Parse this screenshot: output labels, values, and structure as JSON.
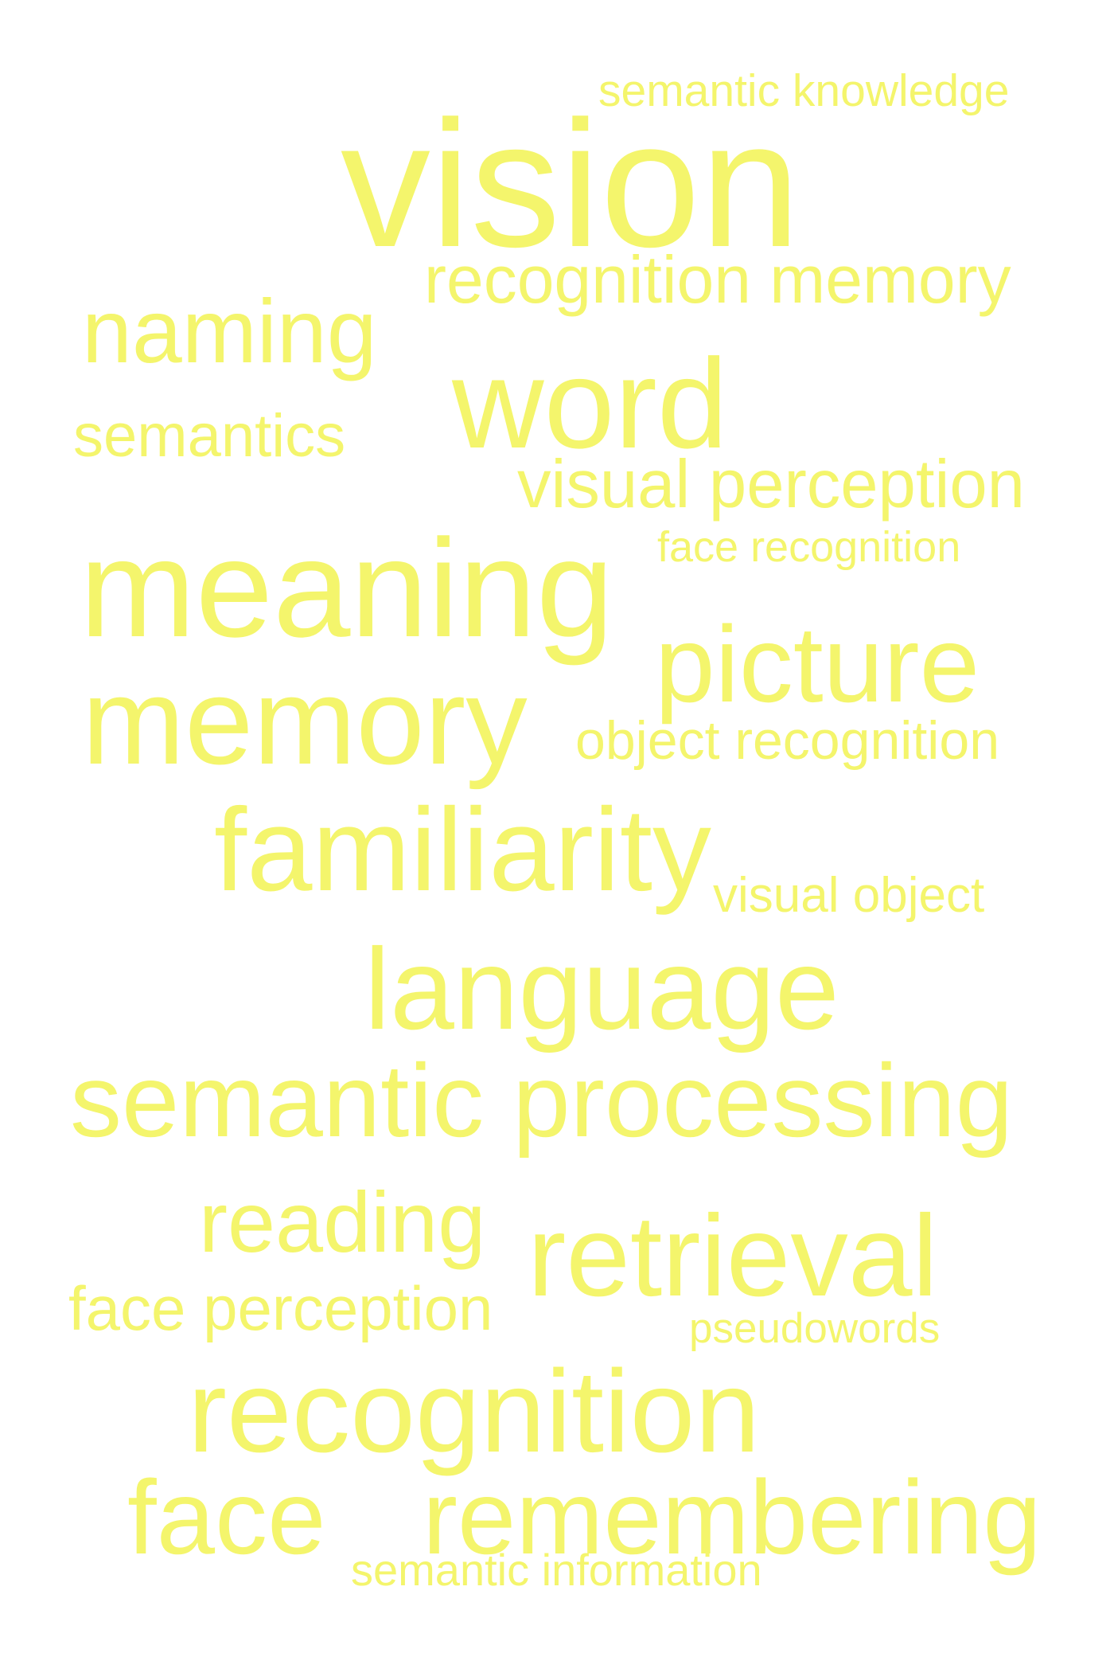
{
  "colors": {
    "background": "#ffffff",
    "word": "#f4f56c"
  },
  "words": [
    "semantic knowledge",
    "vision",
    "recognition memory",
    "naming",
    "word",
    "semantics",
    "visual perception",
    "face recognition",
    "meaning",
    "picture",
    "memory",
    "object recognition",
    "familiarity",
    "visual object",
    "language",
    "semantic processing",
    "reading",
    "retrieval",
    "face perception",
    "pseudowords",
    "recognition",
    "face",
    "remembering",
    "semantic information"
  ]
}
